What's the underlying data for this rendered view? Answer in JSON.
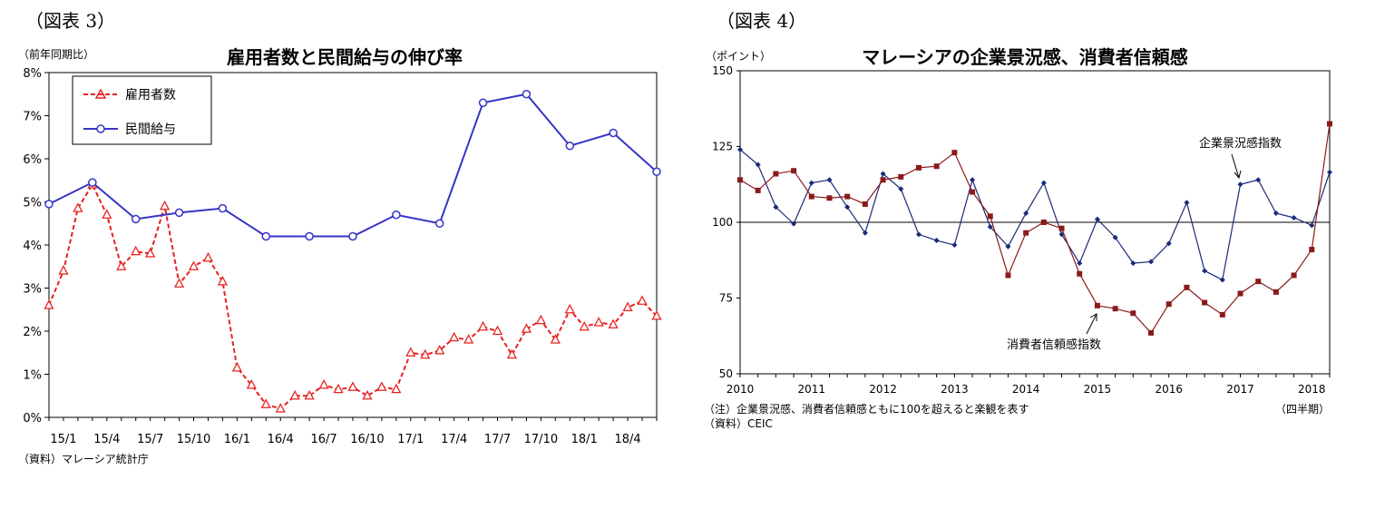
{
  "chart_data": [
    {
      "type": "line",
      "figure_label": "（図表 3）",
      "title": "雇用者数と民間給与の伸び率",
      "ylabel": "（前年同期比）",
      "source": "（資料）マレーシア統計庁",
      "ylim": [
        0,
        8
      ],
      "y_ticks": [
        "0%",
        "1%",
        "2%",
        "3%",
        "4%",
        "5%",
        "6%",
        "7%",
        "8%"
      ],
      "x_tick_labels": [
        "15/1",
        "15/4",
        "15/7",
        "15/10",
        "16/1",
        "16/4",
        "16/7",
        "16/10",
        "17/1",
        "17/4",
        "17/7",
        "17/10",
        "18/1",
        "18/4"
      ],
      "legend_position": "top-left",
      "series": [
        {
          "name": "雇用者数",
          "color": "#e8201e",
          "style": "dashed",
          "marker": "triangle",
          "x": [
            0,
            1,
            2,
            3,
            4,
            5,
            6,
            7,
            8,
            9,
            10,
            11,
            12,
            13,
            14,
            15,
            16,
            17,
            18,
            19,
            20,
            21,
            22,
            23,
            24,
            25,
            26,
            27,
            28,
            29,
            30,
            31,
            32,
            33,
            34,
            35,
            36,
            37,
            38,
            39,
            40,
            41,
            42
          ],
          "values": [
            2.6,
            3.4,
            4.85,
            5.4,
            4.7,
            3.5,
            3.85,
            3.8,
            4.9,
            3.1,
            3.5,
            3.7,
            3.15,
            1.15,
            0.75,
            0.3,
            0.2,
            0.5,
            0.5,
            0.75,
            0.65,
            0.7,
            0.5,
            0.7,
            0.65,
            1.5,
            1.45,
            1.55,
            1.85,
            1.8,
            2.1,
            2.0,
            1.45,
            2.05,
            2.25,
            1.8,
            2.5,
            2.1,
            2.2,
            2.15,
            2.55,
            2.7,
            2.35
          ]
        },
        {
          "name": "民間給与",
          "color": "#3535c8",
          "style": "solid",
          "marker": "circle",
          "x": [
            0,
            3,
            6,
            9,
            12,
            15,
            18,
            21,
            24,
            27,
            30,
            33,
            36,
            39,
            42
          ],
          "values": [
            4.95,
            5.45,
            4.6,
            4.75,
            4.85,
            4.2,
            4.2,
            4.2,
            4.7,
            4.5,
            7.3,
            7.5,
            6.3,
            6.6,
            5.7
          ]
        }
      ]
    },
    {
      "type": "line",
      "figure_label": "（図表 4）",
      "title": "マレーシアの企業景況感、消費者信頼感",
      "ylabel": "（ポイント）",
      "note": "（注）企業景況感、消費者信頼感ともに100を超えると楽観を表す",
      "source": "（資料）CEIC",
      "x_unit": "（四半期）",
      "ylim": [
        50,
        150
      ],
      "y_ticks": [
        "50",
        "75",
        "100",
        "125",
        "150"
      ],
      "x_tick_labels": [
        "2010",
        "2011",
        "2012",
        "2013",
        "2014",
        "2015",
        "2016",
        "2017",
        "2018"
      ],
      "reference_line": 100,
      "series": [
        {
          "name": "企業景況感指数",
          "color": "#1a2a7a",
          "marker": "diamond",
          "x": [
            0,
            1,
            2,
            3,
            4,
            5,
            6,
            7,
            8,
            9,
            10,
            11,
            12,
            13,
            14,
            15,
            16,
            17,
            18,
            19,
            20,
            21,
            22,
            23,
            24,
            25,
            26,
            27,
            28,
            29,
            30,
            31,
            32,
            33
          ],
          "values": [
            124,
            119,
            105,
            99.5,
            113,
            114,
            105,
            96.5,
            116,
            111,
            96,
            94,
            92.5,
            114,
            98.5,
            92,
            103,
            113,
            96,
            86.5,
            101,
            95,
            86.5,
            87,
            93,
            106.5,
            84,
            81,
            112.5,
            114,
            103,
            101.5,
            99,
            116.5
          ]
        },
        {
          "name": "消費者信頼感指数",
          "color": "#8b1a1a",
          "marker": "square",
          "x": [
            0,
            1,
            2,
            3,
            4,
            5,
            6,
            7,
            8,
            9,
            10,
            11,
            12,
            13,
            14,
            15,
            16,
            17,
            18,
            19,
            20,
            21,
            22,
            23,
            24,
            25,
            26,
            27,
            28,
            29,
            30,
            31,
            32,
            33
          ],
          "values": [
            114,
            110.5,
            116,
            117,
            108.5,
            108,
            108.5,
            106,
            114,
            115,
            118,
            118.5,
            123,
            110,
            102,
            82.5,
            96.5,
            100,
            98,
            83,
            72.5,
            71.5,
            70,
            63.5,
            73,
            78.5,
            73.5,
            69.5,
            76.5,
            80.5,
            77,
            82.5,
            91,
            132.5
          ]
        }
      ]
    }
  ]
}
